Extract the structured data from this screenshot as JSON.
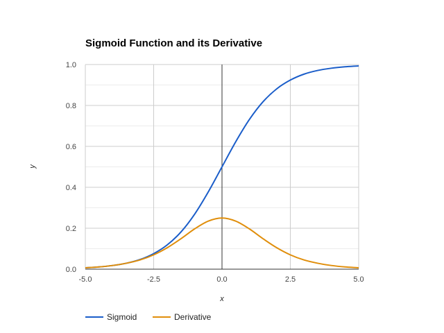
{
  "chart_data": {
    "type": "line",
    "title": "Sigmoid Function and its Derivative",
    "xlabel": "x",
    "ylabel": "y",
    "xlim": [
      -5,
      5
    ],
    "ylim": [
      0,
      1
    ],
    "x_ticks": [
      -5,
      -2.5,
      0,
      2.5,
      5
    ],
    "x_tick_labels": [
      "-5.0",
      "-2.5",
      "0.0",
      "2.5",
      "5.0"
    ],
    "y_ticks": [
      0,
      0.2,
      0.4,
      0.6,
      0.8,
      1
    ],
    "y_tick_labels": [
      "0.0",
      "0.2",
      "0.4",
      "0.6",
      "0.8",
      "1.0"
    ],
    "grid": true,
    "legend_position": "bottom-left",
    "x": [
      -5,
      -4.5,
      -4,
      -3.5,
      -3,
      -2.5,
      -2,
      -1.5,
      -1,
      -0.5,
      0,
      0.5,
      1,
      1.5,
      2,
      2.5,
      3,
      3.5,
      4,
      4.5,
      5
    ],
    "series": [
      {
        "name": "Sigmoid",
        "color": "#1a5dc9",
        "values": [
          0.007,
          0.011,
          0.018,
          0.029,
          0.047,
          0.076,
          0.119,
          0.182,
          0.269,
          0.378,
          0.5,
          0.622,
          0.731,
          0.818,
          0.881,
          0.924,
          0.953,
          0.971,
          0.982,
          0.989,
          0.993
        ]
      },
      {
        "name": "Derivative",
        "color": "#e08e0b",
        "values": [
          0.007,
          0.011,
          0.018,
          0.029,
          0.045,
          0.07,
          0.105,
          0.149,
          0.197,
          0.235,
          0.25,
          0.235,
          0.197,
          0.149,
          0.105,
          0.07,
          0.045,
          0.029,
          0.018,
          0.011,
          0.007
        ]
      }
    ]
  }
}
